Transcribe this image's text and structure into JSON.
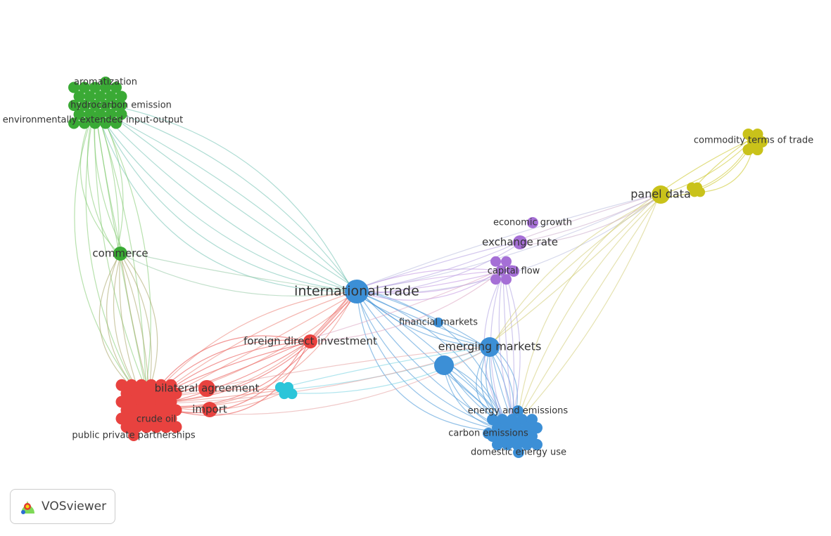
{
  "nodes": [
    {
      "label": "aromatization"
    },
    {
      "label": "hydrocarbon emission"
    },
    {
      "label": "environmentally extended input-output"
    },
    {
      "label": "commerce"
    },
    {
      "label": "international trade"
    },
    {
      "label": "foreign direct investment"
    },
    {
      "label": "bilateral agreement"
    },
    {
      "label": "import"
    },
    {
      "label": "crude oil"
    },
    {
      "label": "public private partnerships"
    },
    {
      "label": "financial markets"
    },
    {
      "label": "emerging markets"
    },
    {
      "label": "energy and emissions"
    },
    {
      "label": "carbon emissions"
    },
    {
      "label": "domestic energy use"
    },
    {
      "label": "economic growth"
    },
    {
      "label": "exchange rate"
    },
    {
      "label": "capital flow"
    },
    {
      "label": "panel data"
    },
    {
      "label": "commodity terms of trade"
    }
  ],
  "logo": {
    "label": "VOSviewer"
  }
}
